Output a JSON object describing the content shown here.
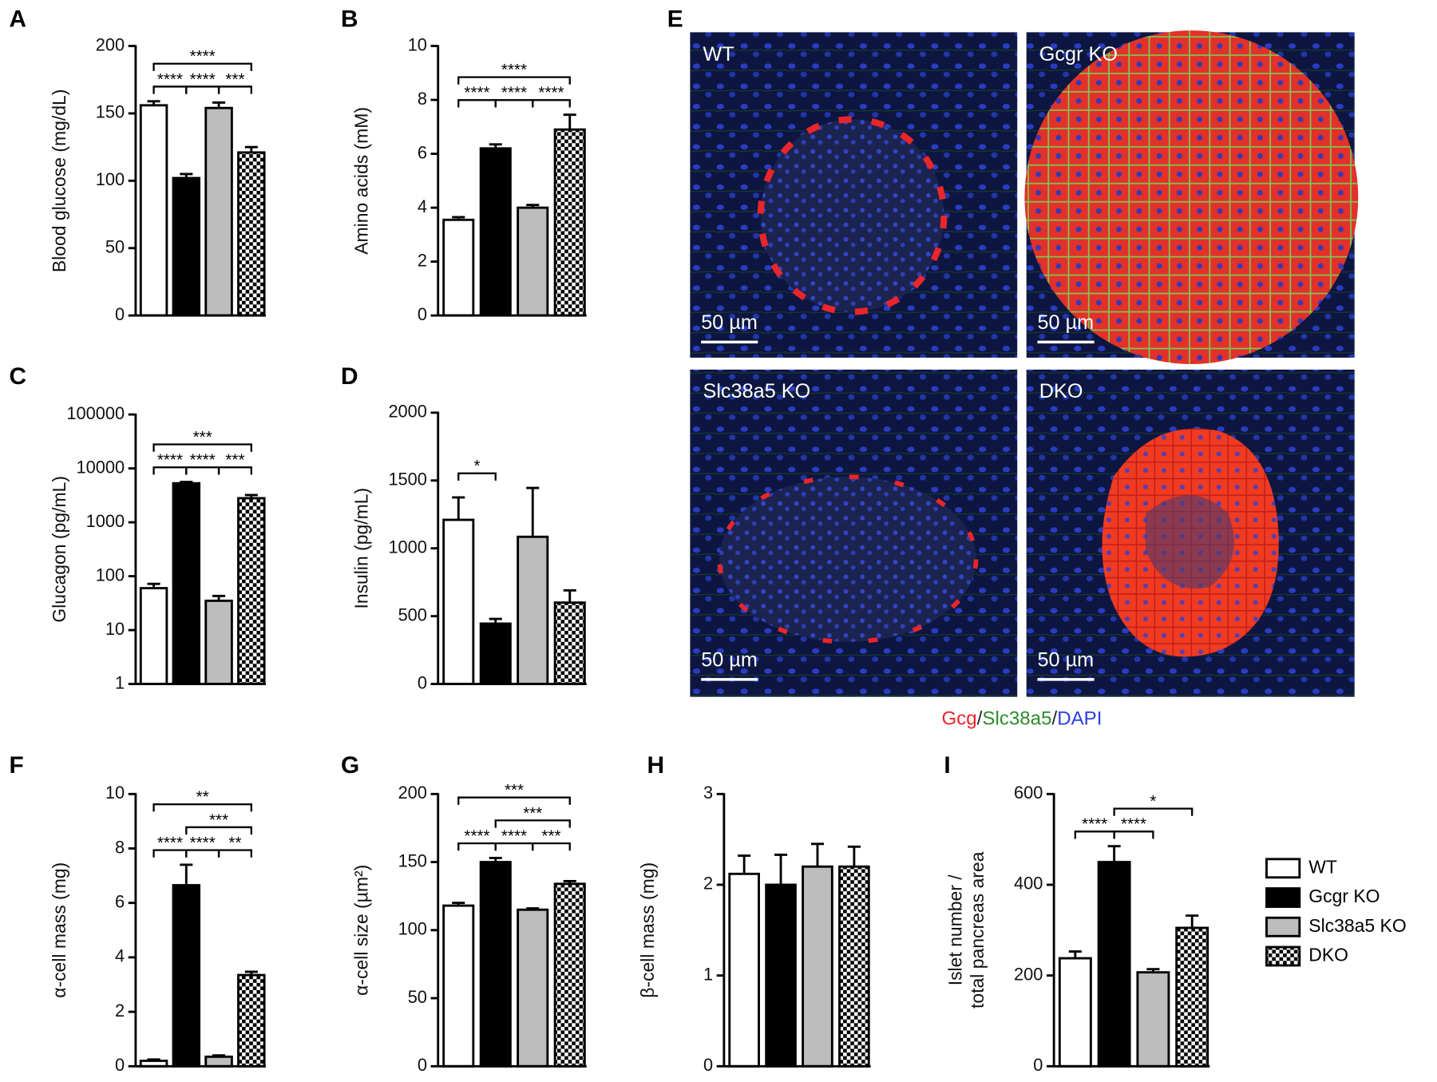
{
  "groups": [
    {
      "name": "WT",
      "color": "#ffffff"
    },
    {
      "name": "Gcgr KO",
      "color": "#000000"
    },
    {
      "name": "Slc38a5 KO",
      "color": "#bdbdbd"
    },
    {
      "name": "DKO",
      "color": "#000000",
      "pattern": "checker"
    }
  ],
  "chart_data": [
    {
      "type": "bar",
      "panel_label": "A",
      "ylabel": [
        "Blood glucose (mg/dL)"
      ],
      "ylim": [
        0,
        200
      ],
      "yticks": [
        0,
        50,
        100,
        150,
        200
      ],
      "values": [
        156,
        102,
        154,
        121
      ],
      "errors": [
        3,
        3,
        4,
        4
      ],
      "significance": [
        {
          "pair": [
            0,
            3
          ],
          "label": "****"
        },
        {
          "pair": [
            0,
            1
          ],
          "label": "****"
        },
        {
          "pair": [
            1,
            2
          ],
          "label": "****"
        },
        {
          "pair": [
            2,
            3
          ],
          "label": "***"
        }
      ]
    },
    {
      "type": "bar",
      "panel_label": "B",
      "ylabel": [
        "Amino acids (mM)"
      ],
      "ylim": [
        0,
        10
      ],
      "yticks": [
        0,
        2,
        4,
        6,
        8,
        10
      ],
      "values": [
        3.55,
        6.2,
        4.0,
        6.9
      ],
      "errors": [
        0.1,
        0.15,
        0.1,
        0.55
      ],
      "significance": [
        {
          "pair": [
            0,
            3
          ],
          "label": "****"
        },
        {
          "pair": [
            0,
            1
          ],
          "label": "****"
        },
        {
          "pair": [
            1,
            2
          ],
          "label": "****"
        },
        {
          "pair": [
            2,
            3
          ],
          "label": "****"
        }
      ]
    },
    {
      "type": "bar",
      "panel_label": "C",
      "ylabel": [
        "Glucagon (pg/mL)"
      ],
      "log_scale": true,
      "ylim": [
        1,
        100000
      ],
      "yticks": [
        1,
        10,
        100,
        1000,
        10000,
        100000
      ],
      "values": [
        60,
        5300,
        35,
        2800
      ],
      "errors": [
        12,
        300,
        8,
        400
      ],
      "significance": [
        {
          "pair": [
            0,
            3
          ],
          "label": "***"
        },
        {
          "pair": [
            0,
            1
          ],
          "label": "****"
        },
        {
          "pair": [
            1,
            2
          ],
          "label": "****"
        },
        {
          "pair": [
            2,
            3
          ],
          "label": "***"
        }
      ]
    },
    {
      "type": "bar",
      "panel_label": "D",
      "ylabel": [
        "Insulin (pg/mL)"
      ],
      "ylim": [
        0,
        2000
      ],
      "yticks": [
        0,
        500,
        1000,
        1500,
        2000
      ],
      "values": [
        1210,
        445,
        1085,
        600
      ],
      "errors": [
        165,
        35,
        360,
        90
      ],
      "significance": [
        {
          "pair": [
            0,
            1
          ],
          "label": "*"
        }
      ]
    },
    {
      "type": "bar",
      "panel_label": "F",
      "ylabel": [
        "α-cell mass (mg)"
      ],
      "ylim": [
        0,
        10
      ],
      "yticks": [
        0,
        2,
        4,
        6,
        8,
        10
      ],
      "values": [
        0.2,
        6.65,
        0.35,
        3.35
      ],
      "errors": [
        0.05,
        0.75,
        0.05,
        0.12
      ],
      "significance": [
        {
          "pair": [
            0,
            3
          ],
          "label": "**"
        },
        {
          "pair": [
            1,
            3
          ],
          "label": "***"
        },
        {
          "pair": [
            0,
            1
          ],
          "label": "****"
        },
        {
          "pair": [
            1,
            2
          ],
          "label": "****"
        },
        {
          "pair": [
            2,
            3
          ],
          "label": "**"
        }
      ]
    },
    {
      "type": "bar",
      "panel_label": "G",
      "ylabel": [
        "α-cell size (µm²)"
      ],
      "ylim": [
        0,
        200
      ],
      "yticks": [
        0,
        50,
        100,
        150,
        200
      ],
      "values": [
        118,
        150,
        115,
        134
      ],
      "errors": [
        2,
        3,
        1,
        2
      ],
      "significance": [
        {
          "pair": [
            0,
            3
          ],
          "label": "***"
        },
        {
          "pair": [
            1,
            3
          ],
          "label": "***"
        },
        {
          "pair": [
            0,
            1
          ],
          "label": "****"
        },
        {
          "pair": [
            1,
            2
          ],
          "label": "****"
        },
        {
          "pair": [
            2,
            3
          ],
          "label": "***"
        }
      ]
    },
    {
      "type": "bar",
      "panel_label": "H",
      "ylabel": [
        "β-cell mass (mg)"
      ],
      "ylim": [
        0,
        3
      ],
      "yticks": [
        0,
        1,
        2,
        3
      ],
      "values": [
        2.12,
        2.0,
        2.2,
        2.2
      ],
      "errors": [
        0.2,
        0.33,
        0.25,
        0.22
      ],
      "significance": []
    },
    {
      "type": "bar",
      "panel_label": "I",
      "ylabel": [
        "Islet number /",
        "total pancreas area"
      ],
      "ylim": [
        0,
        600
      ],
      "yticks": [
        0,
        200,
        400,
        600
      ],
      "values": [
        238,
        450,
        207,
        305
      ],
      "errors": [
        15,
        35,
        7,
        27
      ],
      "significance": [
        {
          "pair": [
            1,
            3
          ],
          "label": "*"
        },
        {
          "pair": [
            0,
            1
          ],
          "label": "****"
        },
        {
          "pair": [
            1,
            2
          ],
          "label": "****"
        }
      ]
    }
  ],
  "micrograph": {
    "panel_label": "E",
    "images": [
      {
        "label": "WT"
      },
      {
        "label": "Gcgr KO"
      },
      {
        "label": "Slc38a5 KO"
      },
      {
        "label": "DKO"
      }
    ],
    "scale_bar": "50 µm",
    "caption": [
      {
        "text": "Gcg",
        "color": "#e8262c"
      },
      {
        "text": "/",
        "color": "#222222"
      },
      {
        "text": "Slc38a5",
        "color": "#2e8b2e"
      },
      {
        "text": "/",
        "color": "#222222"
      },
      {
        "text": "DAPI",
        "color": "#2b3fe0"
      }
    ]
  }
}
